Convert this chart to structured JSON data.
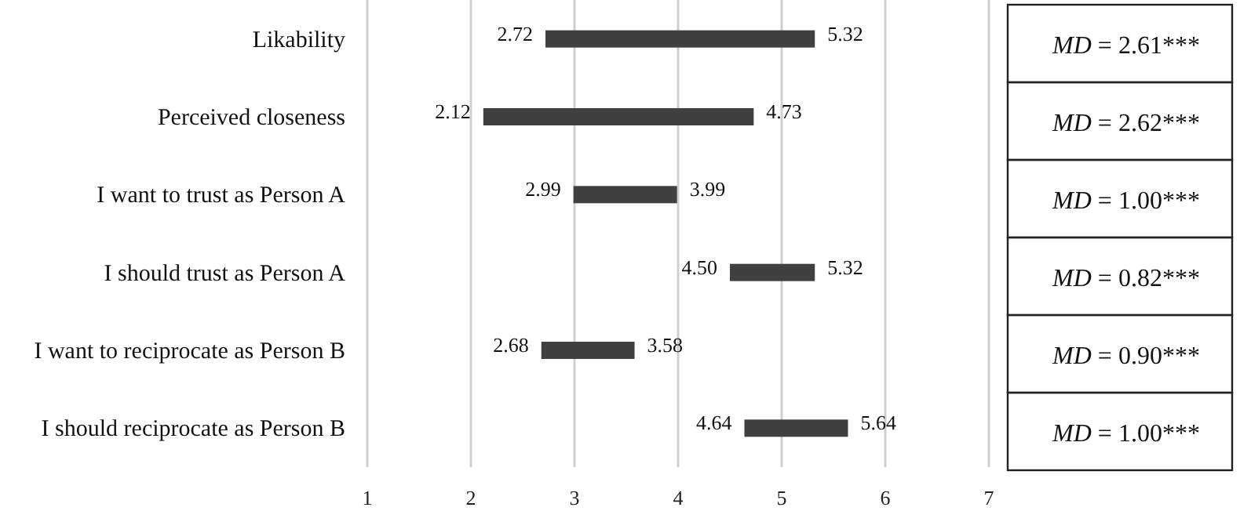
{
  "chart_data": {
    "type": "bar",
    "orientation": "horizontal",
    "categories": [
      "Likability",
      "Perceived closeness",
      "I want to trust as Person A",
      "I should trust as Person A",
      "I want to reciprocate as Person B",
      "I should reciprocate as Person B"
    ],
    "base": [
      2.72,
      2.12,
      2.99,
      4.5,
      2.68,
      4.64
    ],
    "values": [
      2.6,
      2.61,
      1.0,
      0.82,
      0.9,
      1.0
    ],
    "color": "#404040",
    "xlim": [
      1,
      7
    ],
    "xticks": [
      1,
      2,
      3,
      4,
      5,
      6,
      7
    ],
    "grid": "x",
    "annotations": [
      {
        "text": "2.72",
        "x": 2.72,
        "y": "Likability"
      },
      {
        "text": "5.32",
        "x": 5.32,
        "y": "Likability"
      },
      {
        "text": "2.12",
        "x": 2.12,
        "y": "Perceived closeness"
      },
      {
        "text": "4.73",
        "x": 4.73,
        "y": "Perceived closeness"
      },
      {
        "text": "2.99",
        "x": 2.99,
        "y": "I want to trust as Person A"
      },
      {
        "text": "3.99",
        "x": 3.99,
        "y": "I want to trust as Person A"
      },
      {
        "text": "4.50",
        "x": 4.5,
        "y": "I should trust as Person A"
      },
      {
        "text": "5.32",
        "x": 5.32,
        "y": "I should trust as Person A"
      },
      {
        "text": "2.68",
        "x": 2.68,
        "y": "I want to reciprocate as Person B"
      },
      {
        "text": "3.58",
        "x": 3.58,
        "y": "I want to reciprocate as Person B"
      },
      {
        "text": "4.64",
        "x": 4.64,
        "y": "I should reciprocate as Person B"
      },
      {
        "text": "5.64",
        "x": 5.64,
        "y": "I should reciprocate as Person B"
      },
      "MD = 2.61***",
      "MD = 2.62***",
      "MD = 1.00***",
      "MD = 0.82***",
      "MD = 0.90***",
      "MD = 1.00***"
    ]
  }
}
